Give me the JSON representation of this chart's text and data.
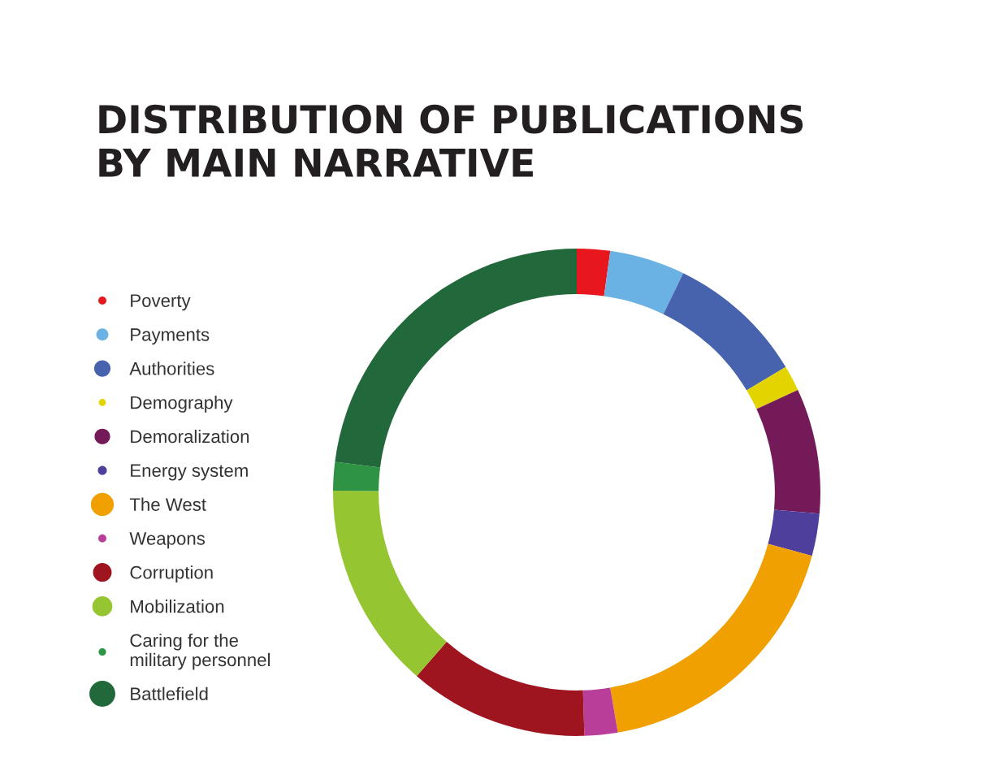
{
  "chart_data": {
    "type": "donut",
    "title": "DISTRIBUTION OF PUBLICATIONS\nBY MAIN NARRATIVE",
    "categories": [
      "Poverty",
      "Payments",
      "Authorities",
      "Demography",
      "Demoralization",
      "Energy system",
      "The West",
      "Weapons",
      "Corruption",
      "Mobilization",
      "Caring for the\nmilitary personnel",
      "Battlefield"
    ],
    "values": [
      2.2,
      5.0,
      9.2,
      1.7,
      8.3,
      2.8,
      18.1,
      2.2,
      11.9,
      13.7,
      1.9,
      23.0
    ],
    "colors": [
      "#e8161d",
      "#6ab2e4",
      "#4763ae",
      "#e3d400",
      "#741a58",
      "#4e3f9c",
      "#f0a000",
      "#b83e9a",
      "#9e1520",
      "#95c530",
      "#2e9443",
      "#21683a"
    ],
    "legend": "left"
  }
}
